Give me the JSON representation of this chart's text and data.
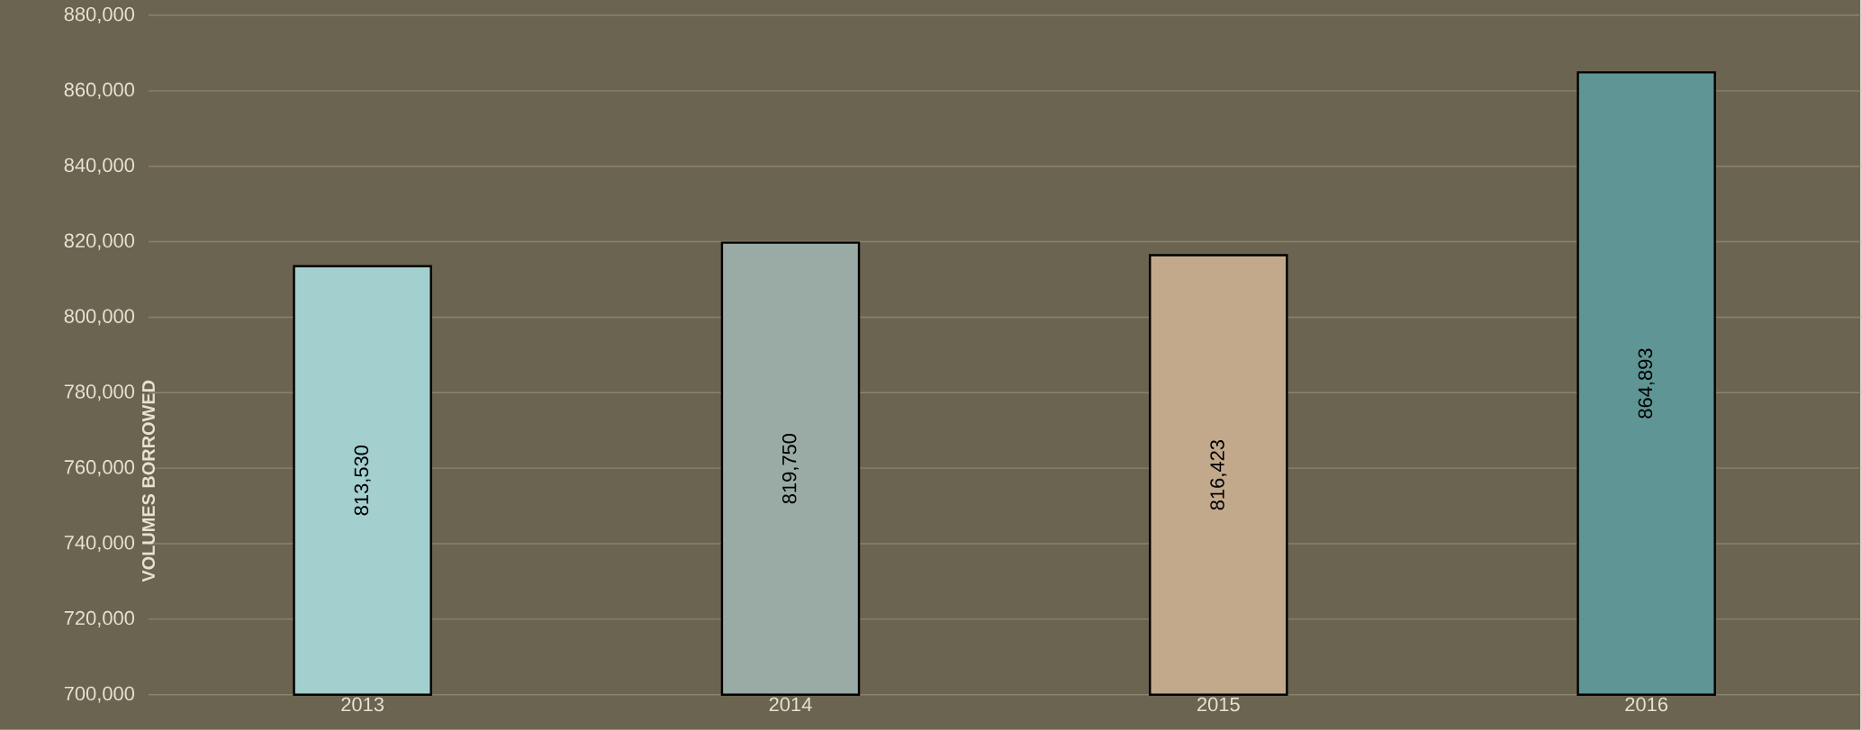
{
  "chart_data": {
    "type": "bar",
    "ylabel": "VOLUMES BORROWED",
    "categories": [
      "2013",
      "2014",
      "2015",
      "2016"
    ],
    "values": [
      813530,
      819750,
      816423,
      864893
    ],
    "colors": [
      "#a3cfcf",
      "#9aaba5",
      "#c2a98c",
      "#5f9595"
    ],
    "value_labels": [
      "813,530",
      "819,750",
      "816,423",
      "864,893"
    ],
    "ylim": [
      700000,
      880000
    ],
    "yticks": [
      {
        "value": 700000,
        "label": "700,000"
      },
      {
        "value": 720000,
        "label": "720,000"
      },
      {
        "value": 740000,
        "label": "740,000"
      },
      {
        "value": 760000,
        "label": "760,000"
      },
      {
        "value": 780000,
        "label": "780,000"
      },
      {
        "value": 800000,
        "label": "800,000"
      },
      {
        "value": 820000,
        "label": "820,000"
      },
      {
        "value": 840000,
        "label": "840,000"
      },
      {
        "value": 860000,
        "label": "860,000"
      },
      {
        "value": 880000,
        "label": "880,000"
      }
    ],
    "grid": "y"
  }
}
